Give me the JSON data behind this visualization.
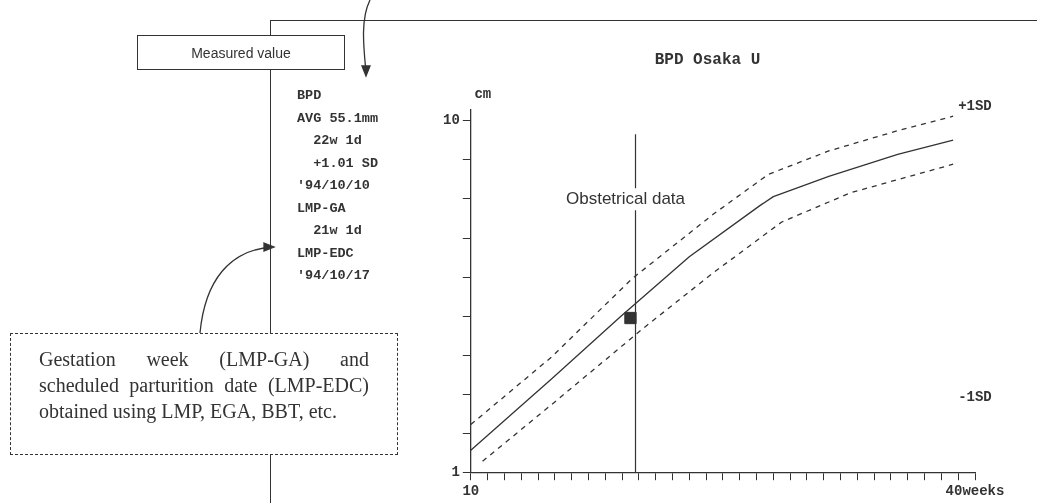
{
  "chart_data": {
    "type": "line",
    "title": "BPD Osaka U",
    "ylabel": "cm",
    "xlim": [
      10,
      40
    ],
    "xticks": [
      10,
      {
        "value": 11,
        "label": null
      },
      {
        "value": 12,
        "label": null
      },
      {
        "value": 13,
        "label": null
      },
      {
        "value": 14,
        "label": null
      },
      {
        "value": 15,
        "label": null
      },
      {
        "value": 16,
        "label": null
      },
      {
        "value": 17,
        "label": null
      },
      {
        "value": 18,
        "label": null
      },
      {
        "value": 19,
        "label": null
      },
      {
        "value": 20,
        "label": null
      },
      {
        "value": 21,
        "label": null
      },
      {
        "value": 22,
        "label": null
      },
      {
        "value": 23,
        "label": null
      },
      {
        "value": 24,
        "label": null
      },
      {
        "value": 25,
        "label": null
      },
      {
        "value": 26,
        "label": null
      },
      {
        "value": 27,
        "label": null
      },
      {
        "value": 28,
        "label": null
      },
      {
        "value": 29,
        "label": null
      },
      {
        "value": 30,
        "label": null
      },
      {
        "value": 31,
        "label": null
      },
      {
        "value": 32,
        "label": null
      },
      {
        "value": 33,
        "label": null
      },
      {
        "value": 34,
        "label": null
      },
      {
        "value": 35,
        "label": null
      },
      {
        "value": 36,
        "label": null
      },
      {
        "value": 37,
        "label": null
      },
      {
        "value": 38,
        "label": null
      },
      {
        "value": 39,
        "label": null
      },
      {
        "value": 40,
        "label": "40weeks"
      }
    ],
    "ylim": [
      1,
      10.3
    ],
    "yticks": [
      1,
      {
        "value": 2,
        "label": null
      },
      {
        "value": 3,
        "label": null
      },
      {
        "value": 4,
        "label": null
      },
      {
        "value": 5,
        "label": null
      },
      {
        "value": 6,
        "label": null
      },
      {
        "value": 7,
        "label": null
      },
      {
        "value": 8,
        "label": null
      },
      {
        "value": 9,
        "label": null
      },
      10
    ],
    "series": [
      {
        "color": "#333333",
        "line_style": "solid",
        "marker": "none",
        "x": [
          10,
          14.8,
          18.9,
          23.0,
          27.2,
          28.0,
          31.3,
          35.4,
          38.7
        ],
        "values": [
          1.56,
          3.39,
          4.98,
          6.52,
          7.83,
          8.06,
          8.58,
          9.14,
          9.51
        ]
      },
      {
        "type": "line",
        "name": "+1SD",
        "color": "#333333",
        "line_style": "dashed",
        "marker": "none",
        "x": [
          10,
          14.8,
          19.6,
          24.4,
          27.7,
          31.3,
          35.4,
          38.7
        ],
        "values": [
          2.22,
          3.95,
          5.96,
          7.6,
          8.63,
          9.23,
          9.75,
          10.12
        ]
      },
      {
        "type": "line",
        "name": "-1SD",
        "color": "#333333",
        "line_style": "dashed",
        "marker": "none",
        "x": [
          10.7,
          14.8,
          20.3,
          24.4,
          28.5,
          32.6,
          38.7
        ],
        "values": [
          1.28,
          2.73,
          4.7,
          6.1,
          7.41,
          8.16,
          8.89
        ]
      },
      {
        "type": "scatter",
        "color": "#333333",
        "marker": "square",
        "x": [
          19.5
        ],
        "values": [
          4.95
        ]
      }
    ],
    "ref_lines": [
      {
        "axis": "x",
        "value": 19.8,
        "label": "Obstetrical data",
        "color": "#333333",
        "line_style": "solid"
      }
    ],
    "annotations": [
      "Measured value",
      "Gestation week (LMP-GA) and scheduled parturition date (LMP-EDC) obtained using LMP, EGA, BBT, etc.",
      "BPD",
      "AVG 55.1mm",
      "  22w 1d",
      "  +1.01 SD",
      "'94/10/10",
      "LMP-GA",
      "  21w 1d",
      "LMP-EDC",
      "'94/10/17"
    ]
  }
}
